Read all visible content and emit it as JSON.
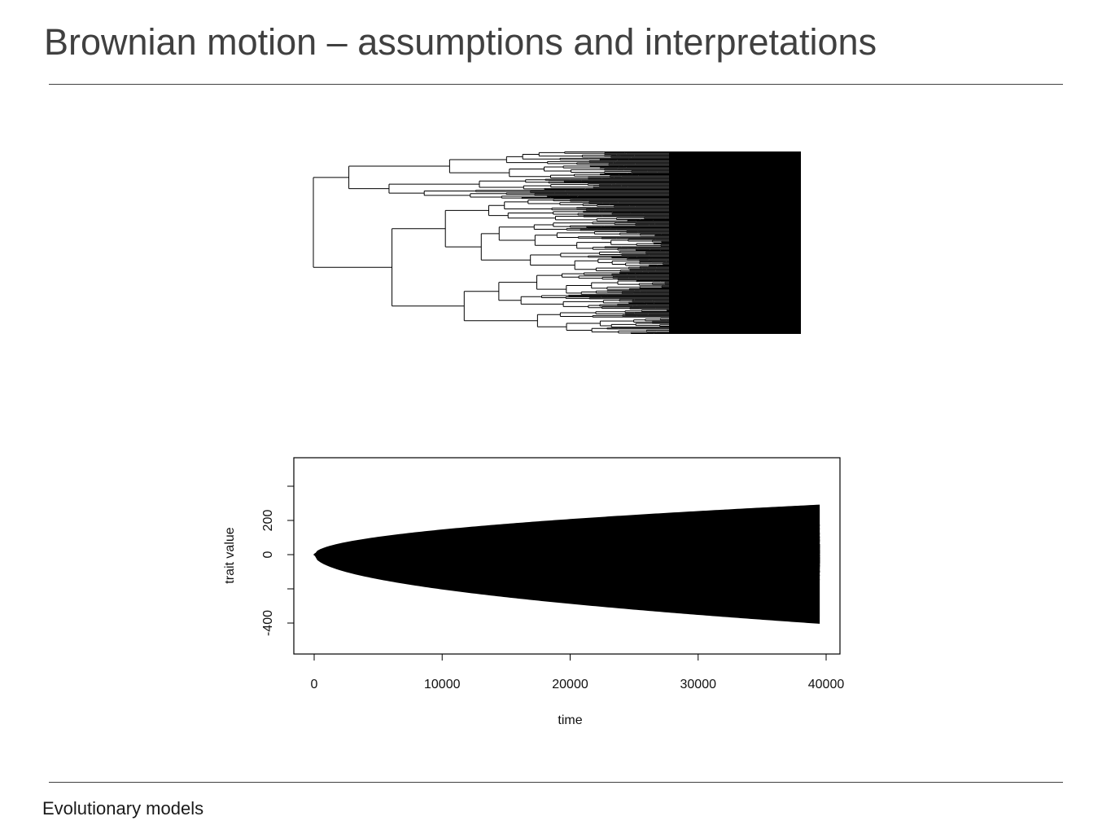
{
  "slide": {
    "title": "Brownian motion – assumptions and interpretations",
    "footer": "Evolutionary models"
  },
  "colors": {
    "title": "#404040",
    "plot_ink": "#000000",
    "rule": "#404040"
  },
  "chart_data": [
    {
      "type": "tree",
      "description_kind": "phylogeny",
      "tips_approx": 200,
      "tip_color": "#000000"
    },
    {
      "type": "line",
      "xlabel": "time",
      "ylabel": "trait value",
      "xlim": [
        0,
        40000
      ],
      "ylim": [
        -500,
        350
      ],
      "x_ticks": [
        0,
        10000,
        20000,
        30000,
        40000
      ],
      "x_tick_labels": [
        "0",
        "10000",
        "20000",
        "30000",
        "40000"
      ],
      "y_ticks": [
        -400,
        -200,
        0,
        200,
        400
      ],
      "y_tick_labels": [
        "-400",
        "",
        "0",
        "200",
        ""
      ],
      "series_count_approx": 200,
      "x_end": 39500,
      "envelope_max": 340,
      "envelope_min": -470,
      "grid": false,
      "legend": "none"
    }
  ]
}
